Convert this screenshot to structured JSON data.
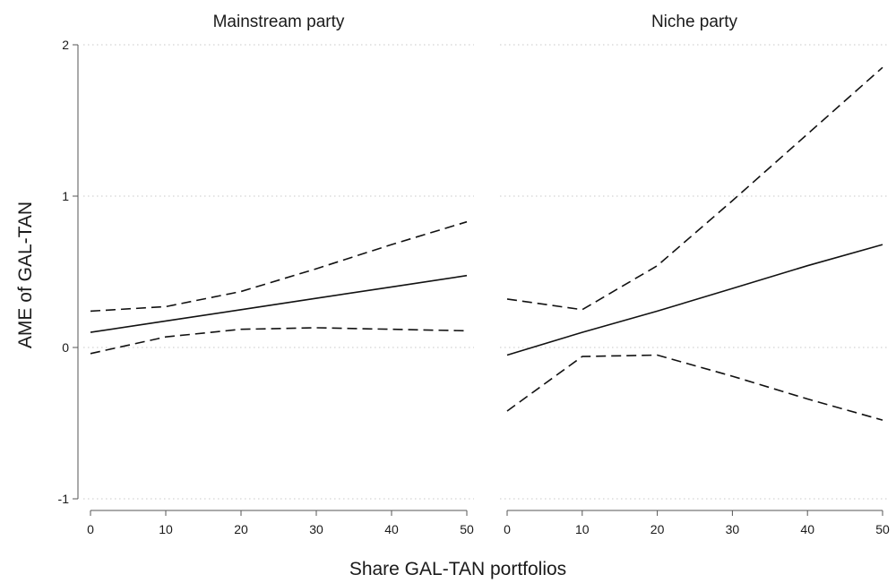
{
  "chart_data": {
    "type": "line",
    "xlabel": "Share GAL-TAN portfolios",
    "ylabel": "AME of GAL-TAN",
    "ylim": [
      -1,
      2
    ],
    "xlim": [
      0,
      50
    ],
    "y_ticks": [
      -1,
      0,
      1,
      2
    ],
    "y_tick_labels": [
      "-1",
      "0",
      "1",
      "2"
    ],
    "x_ticks": [
      0,
      10,
      20,
      30,
      40,
      50
    ],
    "x_tick_labels": [
      "0",
      "10",
      "20",
      "30",
      "40",
      "50"
    ],
    "grid": "horizontal dotted at y ticks",
    "legend": "none",
    "line_color": "#111111",
    "panels": [
      {
        "title": "Mainstream party",
        "x": [
          0,
          10,
          20,
          30,
          40,
          50
        ],
        "series": [
          {
            "role": "estimate",
            "style": "solid",
            "values": [
              0.1,
              0.175,
              0.25,
              0.325,
              0.4,
              0.475
            ]
          },
          {
            "role": "upper bound",
            "style": "dashed",
            "values": [
              0.24,
              0.27,
              0.37,
              0.52,
              0.68,
              0.83
            ]
          },
          {
            "role": "lower bound",
            "style": "dashed",
            "values": [
              -0.04,
              0.07,
              0.12,
              0.13,
              0.12,
              0.11
            ]
          }
        ]
      },
      {
        "title": "Niche party",
        "x": [
          0,
          10,
          20,
          30,
          40,
          50
        ],
        "series": [
          {
            "role": "estimate",
            "style": "solid",
            "values": [
              -0.05,
              0.1,
              0.24,
              0.39,
              0.54,
              0.68
            ]
          },
          {
            "role": "upper bound",
            "style": "dashed",
            "values": [
              0.32,
              0.25,
              0.54,
              0.97,
              1.41,
              1.85
            ]
          },
          {
            "role": "lower bound",
            "style": "dashed",
            "values": [
              -0.42,
              -0.06,
              -0.05,
              -0.19,
              -0.34,
              -0.48
            ]
          }
        ]
      }
    ]
  }
}
